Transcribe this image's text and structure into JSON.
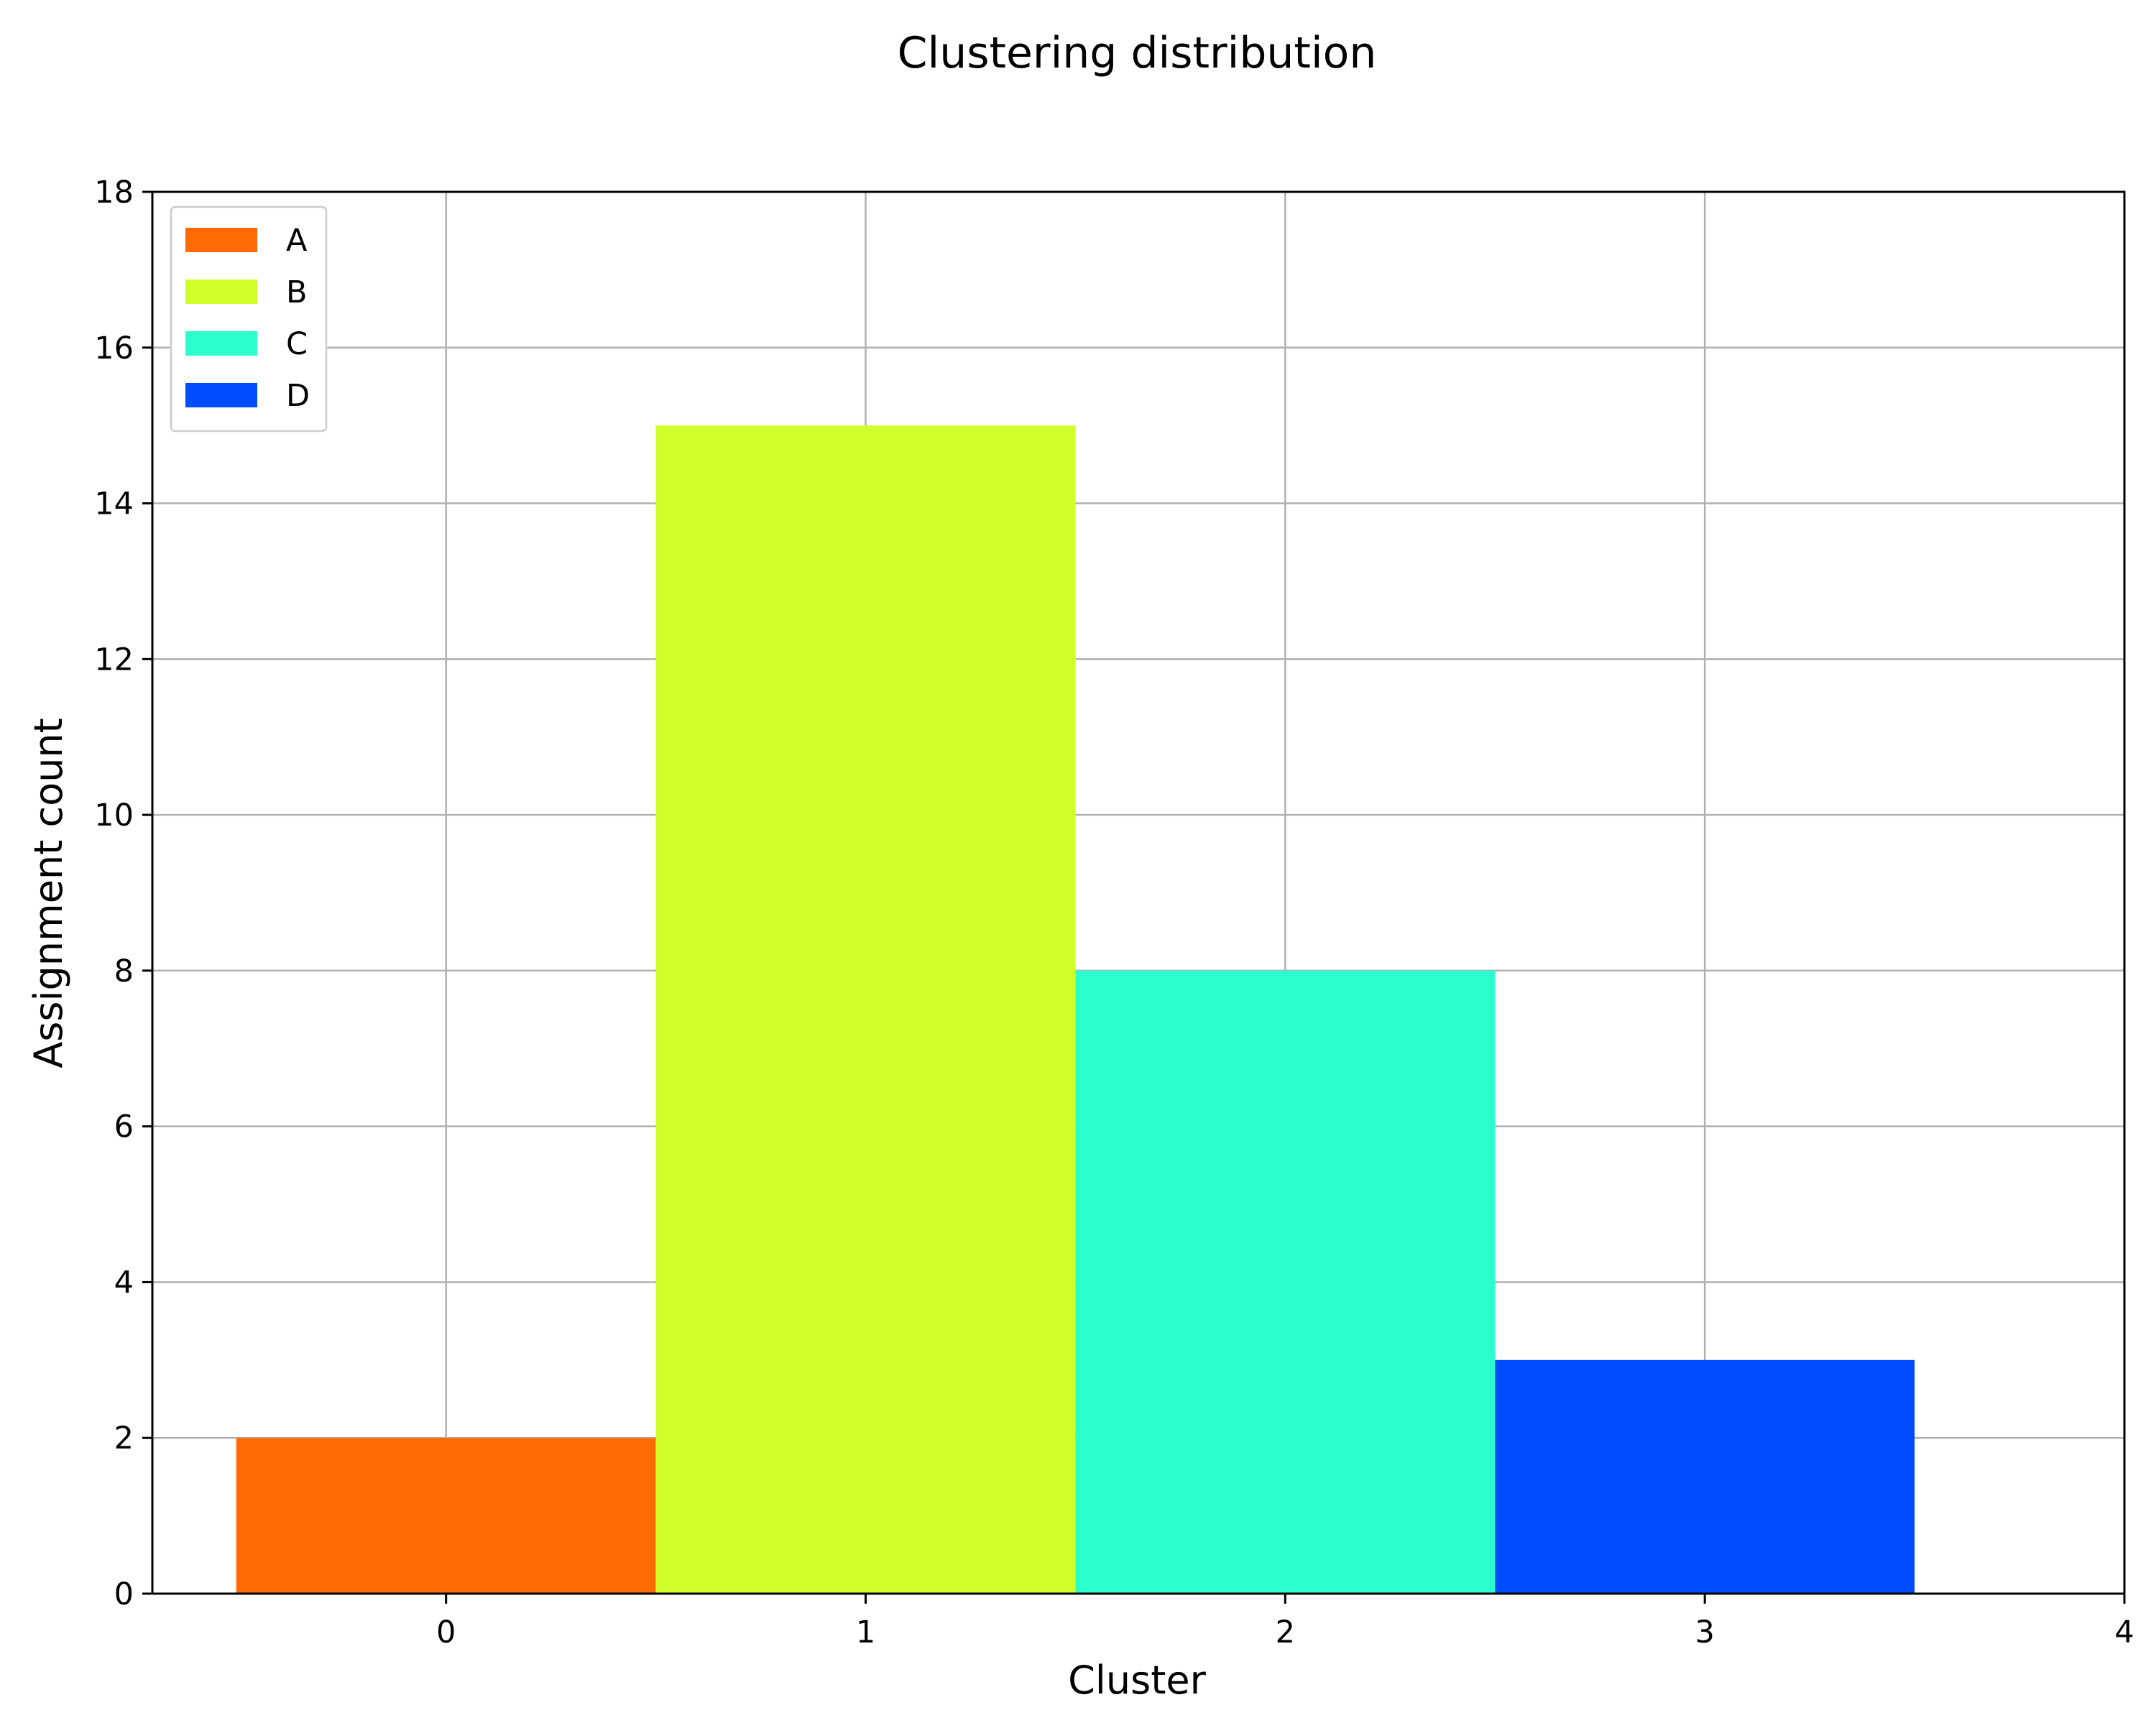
{
  "chart_data": {
    "type": "bar",
    "title": "Clustering distribution",
    "xlabel": "Cluster",
    "ylabel": "Assignment count",
    "categories": [
      "0",
      "1",
      "2",
      "3"
    ],
    "series": [
      {
        "name": "A",
        "x": 0,
        "value": 2,
        "color": "#ff6a04"
      },
      {
        "name": "B",
        "x": 1,
        "value": 15,
        "color": "#d1ff2a"
      },
      {
        "name": "C",
        "x": 2,
        "value": 8,
        "color": "#2affcd"
      },
      {
        "name": "D",
        "x": 3,
        "value": 3,
        "color": "#004dff"
      }
    ],
    "bar_width": 1,
    "xlim": [
      -0.7,
      4
    ],
    "ylim": [
      0,
      18
    ],
    "xticks": [
      0,
      1,
      2,
      3,
      4
    ],
    "yticks": [
      0,
      2,
      4,
      6,
      8,
      10,
      12,
      14,
      16,
      18
    ],
    "grid": true,
    "legend_position": "top-left"
  }
}
